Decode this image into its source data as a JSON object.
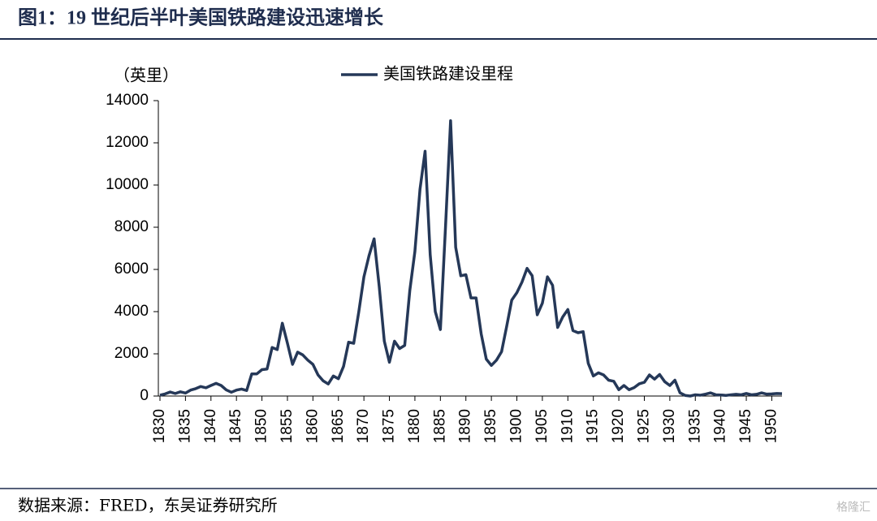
{
  "chart_data": {
    "type": "line",
    "title": "图1：19 世纪后半叶美国铁路建设迅速增长",
    "y_label": "（英里）",
    "source": "数据来源：FRED，东吴证券研究所",
    "watermark": "格隆汇",
    "x": [
      1830,
      1831,
      1832,
      1833,
      1834,
      1835,
      1836,
      1837,
      1838,
      1839,
      1840,
      1841,
      1842,
      1843,
      1844,
      1845,
      1846,
      1847,
      1848,
      1849,
      1850,
      1851,
      1852,
      1853,
      1854,
      1855,
      1856,
      1857,
      1858,
      1859,
      1860,
      1861,
      1862,
      1863,
      1864,
      1865,
      1866,
      1867,
      1868,
      1869,
      1870,
      1871,
      1872,
      1873,
      1874,
      1875,
      1876,
      1877,
      1878,
      1879,
      1880,
      1881,
      1882,
      1883,
      1884,
      1885,
      1886,
      1887,
      1888,
      1889,
      1890,
      1891,
      1892,
      1893,
      1894,
      1895,
      1896,
      1897,
      1898,
      1899,
      1900,
      1901,
      1902,
      1903,
      1904,
      1905,
      1906,
      1907,
      1908,
      1909,
      1910,
      1911,
      1912,
      1913,
      1914,
      1915,
      1916,
      1917,
      1918,
      1919,
      1920,
      1921,
      1922,
      1923,
      1924,
      1925,
      1926,
      1927,
      1928,
      1929,
      1930,
      1931,
      1932,
      1933,
      1934,
      1935,
      1936,
      1937,
      1938,
      1939,
      1940,
      1941,
      1942,
      1943,
      1944,
      1945,
      1946,
      1947,
      1948,
      1949,
      1950,
      1951,
      1952
    ],
    "series": [
      {
        "name": "美国铁路建设里程",
        "color": "#253858",
        "values": [
          40,
          100,
          190,
          120,
          200,
          140,
          280,
          350,
          450,
          390,
          500,
          600,
          500,
          290,
          180,
          280,
          330,
          260,
          1050,
          1050,
          1250,
          1280,
          2300,
          2200,
          3450,
          2500,
          1500,
          2080,
          1950,
          1700,
          1500,
          1000,
          720,
          570,
          950,
          820,
          1400,
          2550,
          2500,
          4000,
          5650,
          6650,
          7450,
          5200,
          2600,
          1600,
          2600,
          2250,
          2400,
          5000,
          6850,
          9800,
          11600,
          6700,
          4000,
          3150,
          8000,
          13050,
          7050,
          5700,
          5750,
          4650,
          4650,
          2950,
          1750,
          1450,
          1700,
          2100,
          3300,
          4550,
          4900,
          5400,
          6050,
          5700,
          3850,
          4400,
          5650,
          5250,
          3250,
          3750,
          4100,
          3100,
          3000,
          3050,
          1550,
          950,
          1100,
          1000,
          750,
          700,
          300,
          500,
          300,
          400,
          580,
          650,
          1000,
          800,
          1020,
          680,
          500,
          750,
          150,
          30,
          0,
          60,
          40,
          90,
          150,
          60,
          50,
          30,
          60,
          80,
          60,
          120,
          60,
          80,
          150,
          90,
          100,
          120,
          110
        ]
      }
    ],
    "xlim": [
      1830,
      1952
    ],
    "xticks": [
      1830,
      1835,
      1840,
      1845,
      1850,
      1855,
      1860,
      1865,
      1870,
      1875,
      1880,
      1885,
      1890,
      1895,
      1900,
      1905,
      1910,
      1915,
      1920,
      1925,
      1930,
      1935,
      1940,
      1945,
      1950
    ],
    "ylim": [
      0,
      14000
    ],
    "yticks": [
      0,
      2000,
      4000,
      6000,
      8000,
      10000,
      12000,
      14000
    ],
    "legend": "top"
  }
}
